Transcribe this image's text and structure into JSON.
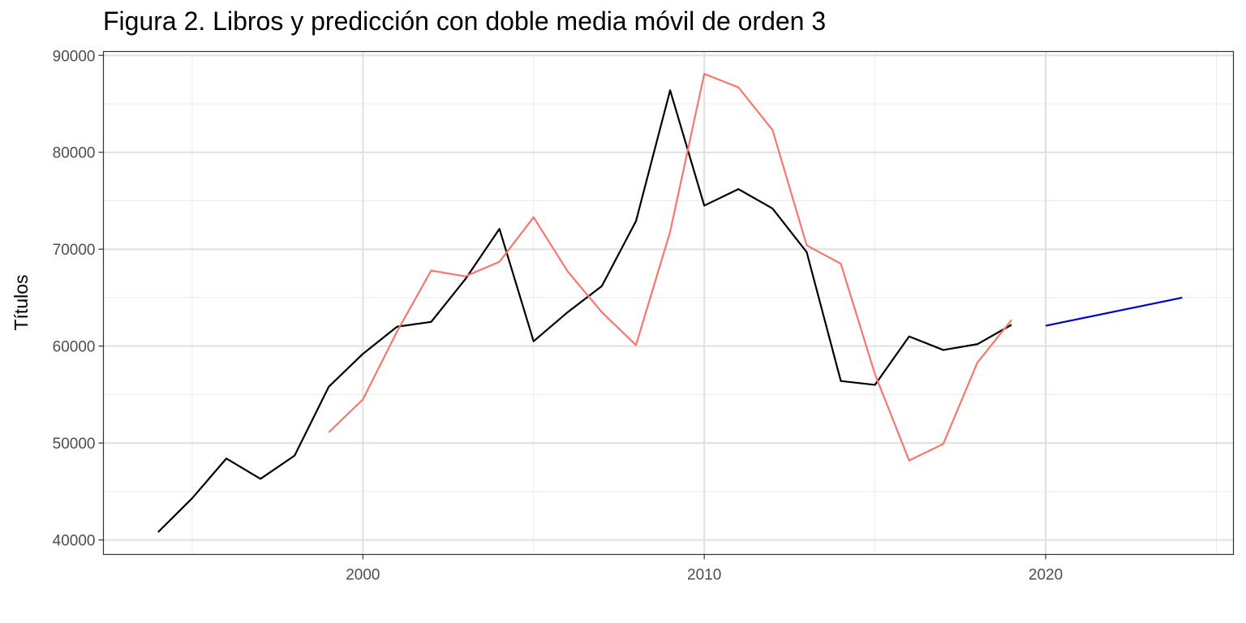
{
  "chart_data": {
    "type": "line",
    "title": "Figura 2. Libros y predicción con doble media móvil de orden 3",
    "xlabel": "",
    "ylabel": "Títulos",
    "xlim": [
      1992.4,
      2025.5
    ],
    "ylim": [
      38500,
      90400
    ],
    "x_ticks": [
      2000,
      2010,
      2020
    ],
    "x_minor_ticks": [
      1995,
      2005,
      2015,
      2025
    ],
    "y_ticks": [
      40000,
      50000,
      60000,
      70000,
      80000,
      90000
    ],
    "y_minor_ticks": [
      45000,
      55000,
      65000,
      75000,
      85000
    ],
    "grid": true,
    "legend": "none",
    "series": [
      {
        "color": "#000000",
        "points": [
          [
            1994,
            40800
          ],
          [
            1995,
            44300
          ],
          [
            1996,
            48400
          ],
          [
            1997,
            46300
          ],
          [
            1998,
            48700
          ],
          [
            1999,
            55800
          ],
          [
            2000,
            59200
          ],
          [
            2001,
            62000
          ],
          [
            2002,
            62500
          ],
          [
            2003,
            66900
          ],
          [
            2004,
            72100
          ],
          [
            2005,
            60500
          ],
          [
            2006,
            63500
          ],
          [
            2007,
            66200
          ],
          [
            2008,
            72900
          ],
          [
            2009,
            86400
          ],
          [
            2010,
            74500
          ],
          [
            2011,
            76200
          ],
          [
            2012,
            74200
          ],
          [
            2013,
            69700
          ],
          [
            2014,
            56400
          ],
          [
            2015,
            56000
          ],
          [
            2016,
            61000
          ],
          [
            2017,
            59600
          ],
          [
            2018,
            60200
          ],
          [
            2019,
            62200
          ]
        ]
      },
      {
        "color": "#f8766d",
        "points": [
          [
            1999,
            51100
          ],
          [
            2000,
            54500
          ],
          [
            2001,
            61500
          ],
          [
            2002,
            67800
          ],
          [
            2003,
            67200
          ],
          [
            2004,
            68700
          ],
          [
            2005,
            73300
          ],
          [
            2006,
            67700
          ],
          [
            2007,
            63500
          ],
          [
            2008,
            60100
          ],
          [
            2009,
            71800
          ],
          [
            2010,
            88100
          ],
          [
            2011,
            86700
          ],
          [
            2012,
            82300
          ],
          [
            2013,
            70400
          ],
          [
            2014,
            68500
          ],
          [
            2015,
            57100
          ],
          [
            2016,
            48200
          ],
          [
            2017,
            49900
          ],
          [
            2018,
            58300
          ],
          [
            2019,
            62700
          ]
        ]
      },
      {
        "color": "#0000cd",
        "points": [
          [
            2020,
            62100
          ],
          [
            2024,
            65000
          ]
        ]
      }
    ]
  }
}
